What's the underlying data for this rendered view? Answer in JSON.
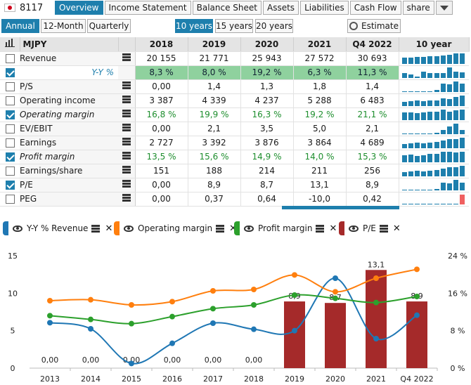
{
  "header": {
    "ticker": "8117",
    "tabs": [
      "Overview",
      "Income Statement",
      "Balance Sheet",
      "Assets",
      "Liabilities",
      "Cash Flow",
      "share"
    ],
    "active_tab": "Overview"
  },
  "periods": {
    "buttons": [
      "Annual",
      "12-Month",
      "Quarterly"
    ],
    "active": "Annual",
    "ranges": [
      "10 years",
      "15 years",
      "20 years"
    ],
    "active_range": "10 years",
    "estimate_label": "Estimate"
  },
  "table": {
    "currency": "MJPY",
    "columns": [
      "2018",
      "2019",
      "2020",
      "2021",
      "Q4 2022"
    ],
    "spark_header": "10 year",
    "rows": [
      {
        "label": "Revenue",
        "checked": false,
        "values": [
          "20 155",
          "21 771",
          "25 943",
          "27 572",
          "30 693"
        ],
        "spark": [
          0.55,
          0.6,
          0.62,
          0.65,
          0.68,
          0.72,
          0.8,
          0.85,
          0.95,
          1.0
        ]
      },
      {
        "label": "Y-Y %",
        "checked": true,
        "values": [
          "8,3 %",
          "8,0 %",
          "19,2 %",
          "6,3 %",
          "11,3 %"
        ],
        "spark": [
          0.45,
          0.3,
          0.1,
          0.6,
          0.45,
          0.45,
          0.45,
          0.95,
          0.55,
          0.5
        ]
      },
      {
        "label": "P/S",
        "checked": false,
        "values": [
          "0,00",
          "1,4",
          "1,3",
          "1,8",
          "1,4"
        ],
        "spark": [
          0,
          0,
          0,
          0,
          0,
          0.2,
          0.75,
          0.7,
          1.0,
          0.75
        ]
      },
      {
        "label": "Operating income",
        "checked": false,
        "values": [
          "3 387",
          "4 339",
          "4 237",
          "5 288",
          "6 483"
        ],
        "spark": [
          0.4,
          0.45,
          0.5,
          0.45,
          0.5,
          0.52,
          0.67,
          0.65,
          0.82,
          1.0
        ]
      },
      {
        "label": "Operating margin",
        "checked": true,
        "values": [
          "16,8 %",
          "19,9 %",
          "16,3 %",
          "19,2 %",
          "21,1 %"
        ],
        "spark": [
          0.7,
          0.72,
          0.65,
          0.7,
          0.8,
          0.8,
          0.95,
          0.78,
          0.92,
          1.0
        ]
      },
      {
        "label": "EV/EBIT",
        "checked": false,
        "values": [
          "0,00",
          "2,1",
          "3,5",
          "5,0",
          "2,1"
        ],
        "spark": [
          0,
          0,
          0,
          0,
          0,
          0.1,
          0.4,
          0.7,
          1.0,
          0.4
        ]
      },
      {
        "label": "Earnings",
        "checked": false,
        "values": [
          "2 727",
          "3 392",
          "3 876",
          "3 864",
          "4 689"
        ],
        "spark": [
          0.4,
          0.45,
          0.5,
          0.45,
          0.5,
          0.55,
          0.72,
          0.82,
          0.82,
          1.0
        ]
      },
      {
        "label": "Profit margin",
        "checked": true,
        "values": [
          "13,5 %",
          "15,6 %",
          "14,9 %",
          "14,0 %",
          "15,3 %"
        ],
        "spark": [
          0.65,
          0.68,
          0.6,
          0.65,
          0.75,
          0.8,
          0.98,
          0.95,
          0.9,
          0.98
        ]
      },
      {
        "label": "Earnings/share",
        "checked": false,
        "values": [
          "151",
          "188",
          "214",
          "211",
          "256"
        ],
        "spark": [
          0.4,
          0.45,
          0.5,
          0.45,
          0.5,
          0.55,
          0.72,
          0.82,
          0.82,
          1.0
        ]
      },
      {
        "label": "P/E",
        "checked": true,
        "values": [
          "0,00",
          "8,9",
          "8,7",
          "13,1",
          "8,9"
        ],
        "spark": [
          0,
          0,
          0,
          0,
          0,
          0.1,
          0.68,
          0.66,
          1.0,
          0.68
        ]
      },
      {
        "label": "PEG",
        "checked": false,
        "values": [
          "0,00",
          "0,37",
          "0,64",
          "-10,0",
          "0,42"
        ],
        "spark": [
          0,
          0,
          0,
          0,
          0,
          0.05,
          0.05,
          0.05,
          0.05,
          0.9
        ]
      }
    ]
  },
  "legend": [
    {
      "label": "Y-Y % Revenue",
      "color": "#1f77b4"
    },
    {
      "label": "Operating margin",
      "color": "#ff7f0e"
    },
    {
      "label": "Profit margin",
      "color": "#2ca02c"
    },
    {
      "label": "P/E",
      "color": "#a52a2a"
    }
  ],
  "chart_data": {
    "type": "bar",
    "categories": [
      "2013",
      "2014",
      "2015",
      "2016",
      "2017",
      "2018",
      "2019",
      "2020",
      "2021",
      "Q4 2022"
    ],
    "left_axis": {
      "ticks": [
        "0",
        "5",
        "10",
        "15"
      ],
      "range": [
        0,
        15
      ]
    },
    "right_axis": {
      "ticks": [
        "0 %",
        "8 %",
        "16 %",
        "24 %"
      ],
      "range": [
        0,
        24
      ]
    },
    "series": [
      {
        "name": "P/E",
        "kind": "bar",
        "axis": "left",
        "color": "#a52a2a",
        "values": [
          0,
          0,
          0,
          0,
          0,
          0,
          8.9,
          8.7,
          13.1,
          8.9
        ],
        "labels": [
          "0,00",
          "0,00",
          "0,00",
          "0,00",
          "0,00",
          "0,00",
          "8,9",
          "8,7",
          "13,1",
          "8,9"
        ]
      },
      {
        "name": "Y-Y % Revenue",
        "kind": "line",
        "axis": "right",
        "color": "#1f77b4",
        "values": [
          9.7,
          8.4,
          1.0,
          5.3,
          9.6,
          8.3,
          8.0,
          19.2,
          6.3,
          11.3
        ]
      },
      {
        "name": "Operating margin",
        "kind": "line",
        "axis": "right",
        "color": "#ff7f0e",
        "values": [
          14.4,
          14.6,
          13.5,
          14.2,
          16.5,
          16.8,
          19.9,
          16.3,
          19.2,
          21.1
        ]
      },
      {
        "name": "Profit margin",
        "kind": "line",
        "axis": "right",
        "color": "#2ca02c",
        "values": [
          11.2,
          10.4,
          9.5,
          11.0,
          12.7,
          13.5,
          15.6,
          14.9,
          14.0,
          15.3
        ]
      }
    ]
  }
}
